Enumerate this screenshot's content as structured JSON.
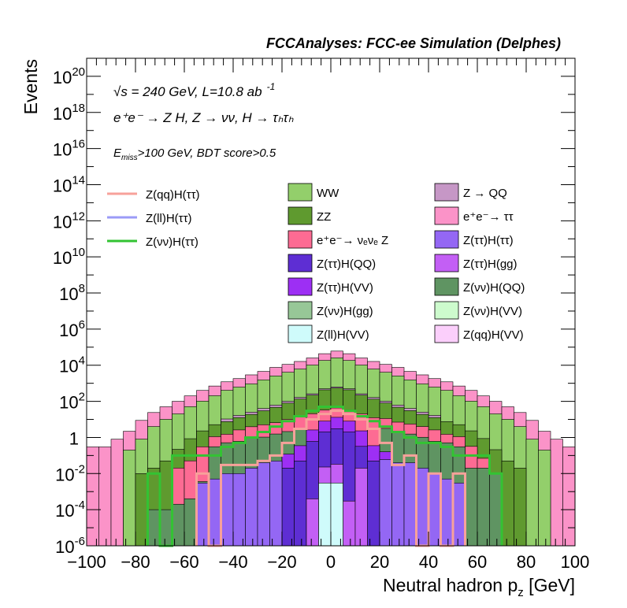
{
  "chart_data": {
    "type": "bar",
    "title": "FCCAnalyses: FCC-ee Simulation (Delphes)",
    "xlabel": "Neutral hadron p",
    "xlabel_sub": "z",
    "xlabel_unit": " [GeV]",
    "ylabel": "Events",
    "y_scale": "log",
    "xlim": [
      -100,
      100
    ],
    "ylim": [
      1e-06,
      1e+21
    ],
    "x_ticks": [
      "−100",
      "−80",
      "−60",
      "−40",
      "−20",
      "0",
      "20",
      "40",
      "60",
      "80",
      "100"
    ],
    "y_ticks": [
      {
        "base": "10",
        "exp": "20"
      },
      {
        "base": "10",
        "exp": "18"
      },
      {
        "base": "10",
        "exp": "16"
      },
      {
        "base": "10",
        "exp": "14"
      },
      {
        "base": "10",
        "exp": "12"
      },
      {
        "base": "10",
        "exp": "10"
      },
      {
        "base": "10",
        "exp": "8"
      },
      {
        "base": "10",
        "exp": "6"
      },
      {
        "base": "10",
        "exp": "4"
      },
      {
        "base": "10",
        "exp": "2"
      },
      {
        "base": "1",
        "exp": ""
      },
      {
        "base": "10",
        "exp": "-2"
      },
      {
        "base": "10",
        "exp": "-4"
      },
      {
        "base": "10",
        "exp": "-6"
      }
    ],
    "annotations": {
      "energy_line": "√s = 240 GeV, L=10.8 ab",
      "energy_exp": "-1",
      "process_line": "e⁺e⁻ → Z H, Z → νν, H → τₕτₕ",
      "cuts_line": "E",
      "cuts_sub": "miss",
      "cuts_rest": ">100 GeV, BDT score>0.5"
    },
    "signal_legend": [
      {
        "name": "Z(qq)H(ττ)",
        "color": "#f7a19a"
      },
      {
        "name": "Z(ll)H(ττ)",
        "color": "#9b9bf7"
      },
      {
        "name": "Z(νν)H(ττ)",
        "color": "#33c333"
      }
    ],
    "background_legend": [
      {
        "name": "WW",
        "color": "#93cf6b"
      },
      {
        "name": "Z → QQ",
        "color": "#c697c6"
      },
      {
        "name": "ZZ",
        "color": "#5f9a2f"
      },
      {
        "name": "e⁺e⁻→ ττ",
        "color": "#fb93c8"
      },
      {
        "name": "e⁺e⁻→ νₑνₑ Z",
        "color": "#fd6b93"
      },
      {
        "name": "Z(ττ)H(ττ)",
        "color": "#9467f4"
      },
      {
        "name": "Z(ττ)H(QQ)",
        "color": "#5e2ed3"
      },
      {
        "name": "Z(ττ)H(gg)",
        "color": "#c35ff5"
      },
      {
        "name": "Z(ττ)H(VV)",
        "color": "#9d2ff4"
      },
      {
        "name": "Z(νν)H(QQ)",
        "color": "#5f9462"
      },
      {
        "name": "Z(νν)H(gg)",
        "color": "#97c797"
      },
      {
        "name": "Z(νν)H(VV)",
        "color": "#cdfbcd"
      },
      {
        "name": "Z(ll)H(VV)",
        "color": "#cffbfb"
      },
      {
        "name": "Z(qq)H(VV)",
        "color": "#fbcffb"
      }
    ],
    "bin_width": 5,
    "bin_edges_from": -100,
    "stack_bottom_to_top": [
      {
        "name": "Z(ll)H(VV)",
        "color": "#cffbfb",
        "bins": {
          "-5": 0.003,
          "0": 0.003
        }
      },
      {
        "name": "Z(ττ)H(gg)",
        "color": "#c35ff5",
        "bins": {
          "-10": 0.0004,
          "-5": 0.02,
          "0": 0.03,
          "5": 0.0003,
          "10": 0.02
        }
      },
      {
        "name": "Z(ττ)H(ττ)",
        "color": "#9467f4",
        "bins": {
          "-55": 0.003,
          "-50": 0.005,
          "-45": 0.01,
          "-40": 0.01,
          "-35": 0.02,
          "-30": 0.04,
          "-25": 0.05,
          "20": 0.06,
          "25": 0.04,
          "30": 0.04,
          "35": 0.02,
          "40": 0.01,
          "45": 0.005,
          "50": 0.003
        }
      },
      {
        "name": "Z(ττ)H(QQ)",
        "color": "#5e2ed3",
        "bins": {
          "-20": 0.02,
          "-15": 0.05,
          "-10": 0.6,
          "-5": 2.0,
          "0": 3.0,
          "5": 2.0,
          "10": 0.3,
          "15": 0.05
        }
      },
      {
        "name": "Z(ττ)H(VV)",
        "color": "#9d2ff4",
        "bins": {
          "-20": 0.1,
          "-15": 0.3,
          "-10": 2.0,
          "-5": 6.0,
          "0": 10.0,
          "5": 6.0,
          "10": 2.0,
          "15": 0.3,
          "20": 0.1
        }
      },
      {
        "name": "Z(νν)H(QQ)",
        "color": "#5f9462",
        "bins": {
          "-75": 0.0001,
          "-70": 0.0001,
          "-65": 0.0002,
          "-60": 0.0004,
          "-55": 0.0006,
          "-50": 0.3,
          "-45": 0.5,
          "-40": 0.6,
          "-35": 0.9,
          "-30": 1.0,
          "-25": 1.5,
          "-20": 2.0,
          "-15": 3.0,
          "20": 3.0,
          "25": 2.0,
          "30": 1.5,
          "35": 1.0,
          "40": 0.6,
          "45": 0.5,
          "50": 0.3,
          "55": 0.02,
          "60": 0.02,
          "65": 0.01
        }
      },
      {
        "name": "e⁺e⁻→ νₑνₑ Z",
        "color": "#fd6b93",
        "bins": {
          "-65": 0.02,
          "-60": 0.05,
          "-55": 0.3,
          "-50": 0.8,
          "-45": 1.0,
          "-40": 2.0,
          "-35": 3.0,
          "-30": 4.0,
          "-25": 5.0,
          "-20": 8.0,
          "-15": 12.0,
          "-10": 18.0,
          "-5": 25.0,
          "0": 30.0,
          "5": 25.0,
          "10": 18.0,
          "15": 12.0,
          "20": 8.0,
          "25": 5.0,
          "30": 4.0,
          "35": 3.0,
          "40": 2.0,
          "45": 1.0,
          "50": 0.8,
          "55": 0.3,
          "60": 0.05
        }
      },
      {
        "name": "ZZ",
        "color": "#5f9a2f",
        "bins": {
          "-80": 0.01,
          "-75": 0.02,
          "-70": 0.05,
          "-65": 0.2,
          "-60": 0.8,
          "-55": 2.0,
          "-50": 4.0,
          "-45": 6.0,
          "-40": 10.0,
          "-35": 15.0,
          "-30": 25.0,
          "-25": 40.0,
          "-20": 70.0,
          "-15": 120.0,
          "-10": 200.0,
          "-5": 400.0,
          "0": 500.0,
          "5": 400.0,
          "10": 200.0,
          "15": 120.0,
          "20": 70.0,
          "25": 40.0,
          "30": 25.0,
          "35": 15.0,
          "40": 10.0,
          "45": 6.0,
          "50": 4.0,
          "55": 2.0,
          "60": 0.8,
          "65": 0.2,
          "70": 0.05,
          "75": 0.02
        }
      },
      {
        "name": "Z → QQ",
        "color": "#c697c6",
        "bins": {
          "-45": 3.0,
          "-40": 4.0,
          "-35": 6.0,
          "-30": 10.0,
          "-25": 15.0,
          "-20": 20.0,
          "-15": 30.0,
          "-10": 40.0,
          "-5": 60.0,
          "0": 80.0,
          "5": 60.0,
          "10": 40.0,
          "15": 30.0,
          "20": 20.0,
          "25": 15.0,
          "30": 10.0,
          "35": 6.0,
          "40": 4.0
        }
      },
      {
        "name": "WW",
        "color": "#93cf6b",
        "bins": {
          "-85": 0.2,
          "-80": 0.8,
          "-75": 4.0,
          "-70": 10.0,
          "-65": 20.0,
          "-60": 50.0,
          "-55": 100.0,
          "-50": 200.0,
          "-45": 400.0,
          "-40": 600.0,
          "-35": 900.0,
          "-30": 1500.0,
          "-25": 2500.0,
          "-20": 4000.0,
          "-15": 6000.0,
          "-10": 10000.0,
          "-5": 18000.0,
          "0": 25000.0,
          "5": 18000.0,
          "10": 10000.0,
          "15": 6000.0,
          "20": 4000.0,
          "25": 2500.0,
          "30": 1500.0,
          "35": 900.0,
          "40": 600.0,
          "45": 400.0,
          "50": 200.0,
          "55": 100.0,
          "60": 50.0,
          "65": 20.0,
          "70": 10.0,
          "75": 4.0,
          "80": 0.8,
          "85": 0.2
        }
      },
      {
        "name": "e⁺e⁻→ ττ",
        "color": "#fb93c8",
        "bins": {
          "-100": 0.3,
          "-95": 0.3,
          "-90": 0.8,
          "-85": 2.0,
          "-80": 8.0,
          "-75": 20.0,
          "-70": 40.0,
          "-65": 80.0,
          "-60": 150.0,
          "-55": 300.0,
          "-50": 500.0,
          "-45": 800.0,
          "-40": 1200.0,
          "-35": 2000.0,
          "-30": 3000.0,
          "-25": 5000.0,
          "-20": 7000.0,
          "-15": 10000.0,
          "-10": 15000.0,
          "-5": 25000.0,
          "0": 35000.0,
          "5": 25000.0,
          "10": 15000.0,
          "15": 10000.0,
          "20": 7000.0,
          "25": 5000.0,
          "30": 3000.0,
          "35": 2000.0,
          "40": 1200.0,
          "45": 800.0,
          "50": 500.0,
          "55": 300.0,
          "60": 150.0,
          "65": 80.0,
          "70": 40.0,
          "75": 20.0,
          "80": 8.0,
          "85": 2.0,
          "90": 0.8,
          "95": 0.3
        }
      }
    ],
    "signal_lines": [
      {
        "name": "Z(νν)H(ττ)",
        "color": "#33c333",
        "bins": {
          "-75": 0.01,
          "-70": 1e-06,
          "-65": 0.1,
          "-60": 0.1,
          "-55": 0.1,
          "-50": 0.1,
          "-45": 0.3,
          "-40": 0.5,
          "-35": 1.0,
          "-30": 2.0,
          "-25": 4.0,
          "-20": 8.0,
          "-15": 15.0,
          "-10": 30.0,
          "-5": 50.0,
          "0": 50.0,
          "5": 30.0,
          "10": 15.0,
          "15": 8.0,
          "20": 4.0,
          "25": 2.0,
          "30": 1.0,
          "35": 0.5,
          "40": 0.5,
          "45": 0.3,
          "50": 0.1,
          "55": 0.1,
          "60": 0.1,
          "65": 0.01
        }
      },
      {
        "name": "Z(qq)H(ττ)",
        "color": "#f7a19a",
        "bins": {
          "-55": 0.01,
          "-50": 1e-06,
          "-45": 0.03,
          "-40": 0.03,
          "-35": 0.03,
          "-30": 0.05,
          "-25": 0.1,
          "-20": 0.5,
          "-15": 3.0,
          "-10": 10.0,
          "-5": 20.0,
          "0": 30.0,
          "5": 20.0,
          "10": 10.0,
          "15": 3.0,
          "20": 0.5,
          "25": 0.03,
          "30": 0.1,
          "35": 1e-06,
          "40": 0.01,
          "45": 1e-06,
          "50": 0.01
        }
      }
    ]
  }
}
